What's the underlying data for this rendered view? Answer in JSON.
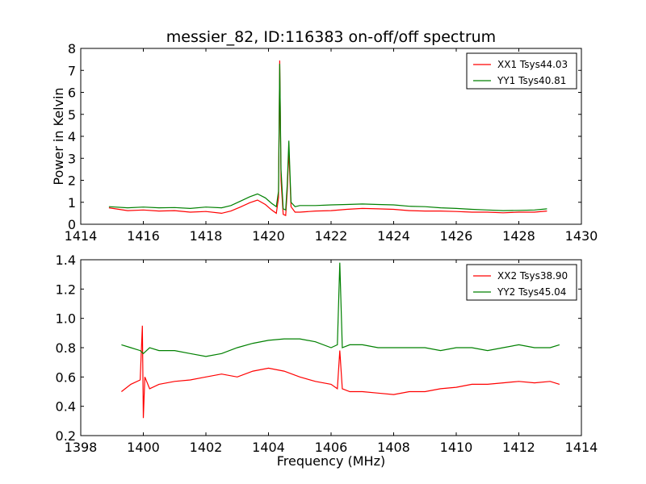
{
  "figure": {
    "title": "messier_82, ID:116383 on-off/off spectrum"
  },
  "chart_data": [
    {
      "type": "line",
      "title": "messier_82, ID:116383 on-off/off spectrum",
      "xlabel": "",
      "ylabel": "Power in Kelvin",
      "xlim": [
        1414,
        1430
      ],
      "ylim": [
        0,
        8
      ],
      "xticks": [
        "1414",
        "1416",
        "1418",
        "1420",
        "1422",
        "1424",
        "1426",
        "1428",
        "1430"
      ],
      "yticks": [
        "0",
        "1",
        "2",
        "3",
        "4",
        "5",
        "6",
        "7",
        "8"
      ],
      "grid": false,
      "legend_position": "top-right",
      "series": [
        {
          "name": "XX1 Tsys44.03",
          "color": "#ff0000",
          "x": [
            1414.9,
            1415.5,
            1416.0,
            1416.5,
            1417.0,
            1417.5,
            1418.0,
            1418.5,
            1418.8,
            1419.1,
            1419.4,
            1419.65,
            1419.9,
            1420.1,
            1420.25,
            1420.32,
            1420.36,
            1420.4,
            1420.47,
            1420.55,
            1420.6,
            1420.65,
            1420.72,
            1420.85,
            1421.0,
            1421.5,
            1422.0,
            1422.5,
            1423.0,
            1423.5,
            1424.0,
            1424.5,
            1425.0,
            1425.5,
            1426.0,
            1426.5,
            1427.0,
            1427.5,
            1428.0,
            1428.5,
            1428.9
          ],
          "values": [
            0.75,
            0.62,
            0.65,
            0.6,
            0.62,
            0.55,
            0.58,
            0.5,
            0.6,
            0.78,
            0.98,
            1.1,
            0.9,
            0.65,
            0.5,
            1.2,
            7.45,
            2.0,
            0.45,
            0.4,
            1.5,
            3.4,
            0.8,
            0.55,
            0.55,
            0.6,
            0.62,
            0.68,
            0.72,
            0.7,
            0.68,
            0.62,
            0.6,
            0.6,
            0.58,
            0.55,
            0.55,
            0.52,
            0.55,
            0.55,
            0.6
          ]
        },
        {
          "name": "YY1 Tsys40.81",
          "color": "#008000",
          "x": [
            1414.9,
            1415.5,
            1416.0,
            1416.5,
            1417.0,
            1417.5,
            1418.0,
            1418.5,
            1418.8,
            1419.1,
            1419.4,
            1419.65,
            1419.9,
            1420.1,
            1420.25,
            1420.32,
            1420.36,
            1420.4,
            1420.47,
            1420.55,
            1420.6,
            1420.65,
            1420.72,
            1420.85,
            1421.0,
            1421.5,
            1422.0,
            1422.5,
            1423.0,
            1423.5,
            1424.0,
            1424.5,
            1425.0,
            1425.5,
            1426.0,
            1426.5,
            1427.0,
            1427.5,
            1428.0,
            1428.5,
            1428.9
          ],
          "values": [
            0.8,
            0.75,
            0.78,
            0.75,
            0.76,
            0.72,
            0.78,
            0.75,
            0.85,
            1.05,
            1.25,
            1.38,
            1.2,
            0.95,
            0.8,
            1.5,
            7.3,
            2.5,
            0.7,
            0.65,
            1.8,
            3.8,
            1.0,
            0.8,
            0.85,
            0.85,
            0.88,
            0.9,
            0.92,
            0.9,
            0.88,
            0.82,
            0.8,
            0.75,
            0.72,
            0.68,
            0.65,
            0.62,
            0.63,
            0.65,
            0.7
          ]
        }
      ]
    },
    {
      "type": "line",
      "title": "",
      "xlabel": "Frequency (MHz)",
      "ylabel": "",
      "xlim": [
        1398,
        1414
      ],
      "ylim": [
        0.2,
        1.4
      ],
      "xticks": [
        "1398",
        "1400",
        "1402",
        "1404",
        "1406",
        "1408",
        "1410",
        "1412",
        "1414"
      ],
      "yticks": [
        "0.2",
        "0.4",
        "0.6",
        "0.8",
        "1.0",
        "1.2",
        "1.4"
      ],
      "grid": false,
      "legend_position": "top-right",
      "series": [
        {
          "name": "XX2 Tsys38.90",
          "color": "#ff0000",
          "x": [
            1399.3,
            1399.6,
            1399.9,
            1399.97,
            1400.0,
            1400.05,
            1400.2,
            1400.5,
            1401.0,
            1401.5,
            1402.0,
            1402.5,
            1403.0,
            1403.5,
            1404.0,
            1404.5,
            1405.0,
            1405.5,
            1406.0,
            1406.2,
            1406.28,
            1406.36,
            1406.6,
            1407.0,
            1407.5,
            1408.0,
            1408.5,
            1409.0,
            1409.5,
            1410.0,
            1410.5,
            1411.0,
            1411.5,
            1412.0,
            1412.5,
            1413.0,
            1413.3
          ],
          "values": [
            0.5,
            0.55,
            0.58,
            0.95,
            0.32,
            0.6,
            0.52,
            0.55,
            0.57,
            0.58,
            0.6,
            0.62,
            0.6,
            0.64,
            0.66,
            0.64,
            0.6,
            0.57,
            0.55,
            0.52,
            0.78,
            0.52,
            0.5,
            0.5,
            0.49,
            0.48,
            0.5,
            0.5,
            0.52,
            0.53,
            0.55,
            0.55,
            0.56,
            0.57,
            0.56,
            0.57,
            0.55
          ]
        },
        {
          "name": "YY2 Tsys45.04",
          "color": "#008000",
          "x": [
            1399.3,
            1399.6,
            1399.9,
            1400.0,
            1400.2,
            1400.5,
            1401.0,
            1401.5,
            1402.0,
            1402.5,
            1403.0,
            1403.5,
            1404.0,
            1404.5,
            1405.0,
            1405.5,
            1406.0,
            1406.2,
            1406.28,
            1406.36,
            1406.6,
            1407.0,
            1407.5,
            1408.0,
            1408.5,
            1409.0,
            1409.5,
            1410.0,
            1410.5,
            1411.0,
            1411.5,
            1412.0,
            1412.5,
            1413.0,
            1413.3
          ],
          "values": [
            0.82,
            0.8,
            0.78,
            0.76,
            0.8,
            0.78,
            0.78,
            0.76,
            0.74,
            0.76,
            0.8,
            0.83,
            0.85,
            0.86,
            0.86,
            0.84,
            0.8,
            0.82,
            1.38,
            0.8,
            0.82,
            0.82,
            0.8,
            0.8,
            0.8,
            0.8,
            0.78,
            0.8,
            0.8,
            0.78,
            0.8,
            0.82,
            0.8,
            0.8,
            0.82
          ]
        }
      ]
    }
  ]
}
